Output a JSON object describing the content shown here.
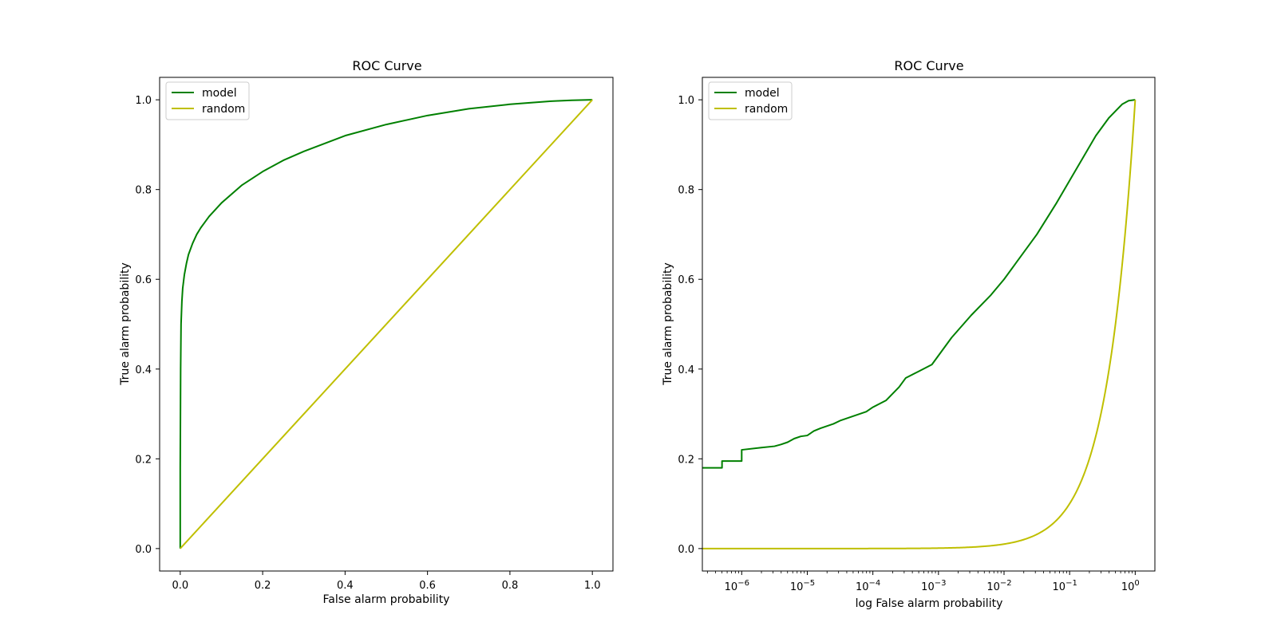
{
  "chart_data": [
    {
      "type": "line",
      "title": "ROC Curve",
      "xlabel": "False alarm probability",
      "ylabel": "True alarm probability",
      "xscale": "linear",
      "xlim": [
        -0.05,
        1.05
      ],
      "ylim": [
        -0.05,
        1.05
      ],
      "xticks": [
        0.0,
        0.2,
        0.4,
        0.6,
        0.8,
        1.0
      ],
      "xtick_labels": [
        "0.0",
        "0.2",
        "0.4",
        "0.6",
        "0.8",
        "1.0"
      ],
      "yticks": [
        0.0,
        0.2,
        0.4,
        0.6,
        0.8,
        1.0
      ],
      "ytick_labels": [
        "0.0",
        "0.2",
        "0.4",
        "0.6",
        "0.8",
        "1.0"
      ],
      "grid": false,
      "legend": "upper-left",
      "series": [
        {
          "name": "model",
          "color": "#008000",
          "x": [
            0,
            0,
            0.001,
            0.002,
            0.004,
            0.006,
            0.01,
            0.015,
            0.02,
            0.03,
            0.04,
            0.05,
            0.07,
            0.1,
            0.15,
            0.2,
            0.25,
            0.3,
            0.4,
            0.5,
            0.6,
            0.7,
            0.8,
            0.9,
            0.95,
            1.0
          ],
          "y": [
            0,
            0.18,
            0.4,
            0.5,
            0.55,
            0.58,
            0.61,
            0.635,
            0.655,
            0.68,
            0.7,
            0.715,
            0.74,
            0.77,
            0.81,
            0.84,
            0.865,
            0.885,
            0.92,
            0.945,
            0.965,
            0.98,
            0.99,
            0.997,
            0.999,
            1.0
          ]
        },
        {
          "name": "random",
          "color": "#bfbf00",
          "x": [
            0,
            1
          ],
          "y": [
            0,
            1
          ]
        }
      ]
    },
    {
      "type": "line",
      "title": "ROC Curve",
      "xlabel": "log False alarm probability",
      "ylabel": "True alarm probability",
      "xscale": "log",
      "xlim_log10": [
        -6.6,
        0.3
      ],
      "ylim": [
        -0.05,
        1.05
      ],
      "xticks_log10": [
        -6,
        -5,
        -4,
        -3,
        -2,
        -1,
        0
      ],
      "xtick_base": "10",
      "xtick_exponents": [
        "−6",
        "−5",
        "−4",
        "−3",
        "−2",
        "−1",
        "0"
      ],
      "yticks": [
        0.0,
        0.2,
        0.4,
        0.6,
        0.8,
        1.0
      ],
      "ytick_labels": [
        "0.0",
        "0.2",
        "0.4",
        "0.6",
        "0.8",
        "1.0"
      ],
      "grid": false,
      "legend": "upper-left",
      "series": [
        {
          "name": "model",
          "color": "#008000",
          "log10_x": [
            -6.6,
            -6.3,
            -6.3,
            -6.0,
            -6.0,
            -5.7,
            -5.5,
            -5.4,
            -5.3,
            -5.2,
            -5.1,
            -5.0,
            -4.9,
            -4.8,
            -4.6,
            -4.5,
            -4.3,
            -4.1,
            -4.0,
            -3.8,
            -3.6,
            -3.5,
            -3.3,
            -3.1,
            -3.0,
            -2.8,
            -2.5,
            -2.2,
            -2.0,
            -1.8,
            -1.5,
            -1.2,
            -1.0,
            -0.8,
            -0.6,
            -0.4,
            -0.2,
            -0.1,
            0.0
          ],
          "y": [
            0.18,
            0.18,
            0.195,
            0.195,
            0.22,
            0.225,
            0.228,
            0.232,
            0.237,
            0.245,
            0.25,
            0.252,
            0.262,
            0.268,
            0.278,
            0.285,
            0.295,
            0.305,
            0.315,
            0.33,
            0.36,
            0.38,
            0.395,
            0.41,
            0.43,
            0.47,
            0.52,
            0.565,
            0.6,
            0.64,
            0.7,
            0.77,
            0.82,
            0.87,
            0.92,
            0.96,
            0.99,
            0.998,
            1.0
          ]
        },
        {
          "name": "random",
          "color": "#bfbf00",
          "log10_x": [
            -6.6,
            -5.0,
            -4.0,
            -3.0,
            -2.5,
            -2.0,
            -1.7,
            -1.5,
            -1.3,
            -1.1,
            -1.0,
            -0.9,
            -0.8,
            -0.7,
            -0.6,
            -0.5,
            -0.4,
            -0.3,
            -0.2,
            -0.15,
            -0.1,
            -0.05,
            0.0
          ],
          "y": "identity"
        }
      ]
    }
  ]
}
